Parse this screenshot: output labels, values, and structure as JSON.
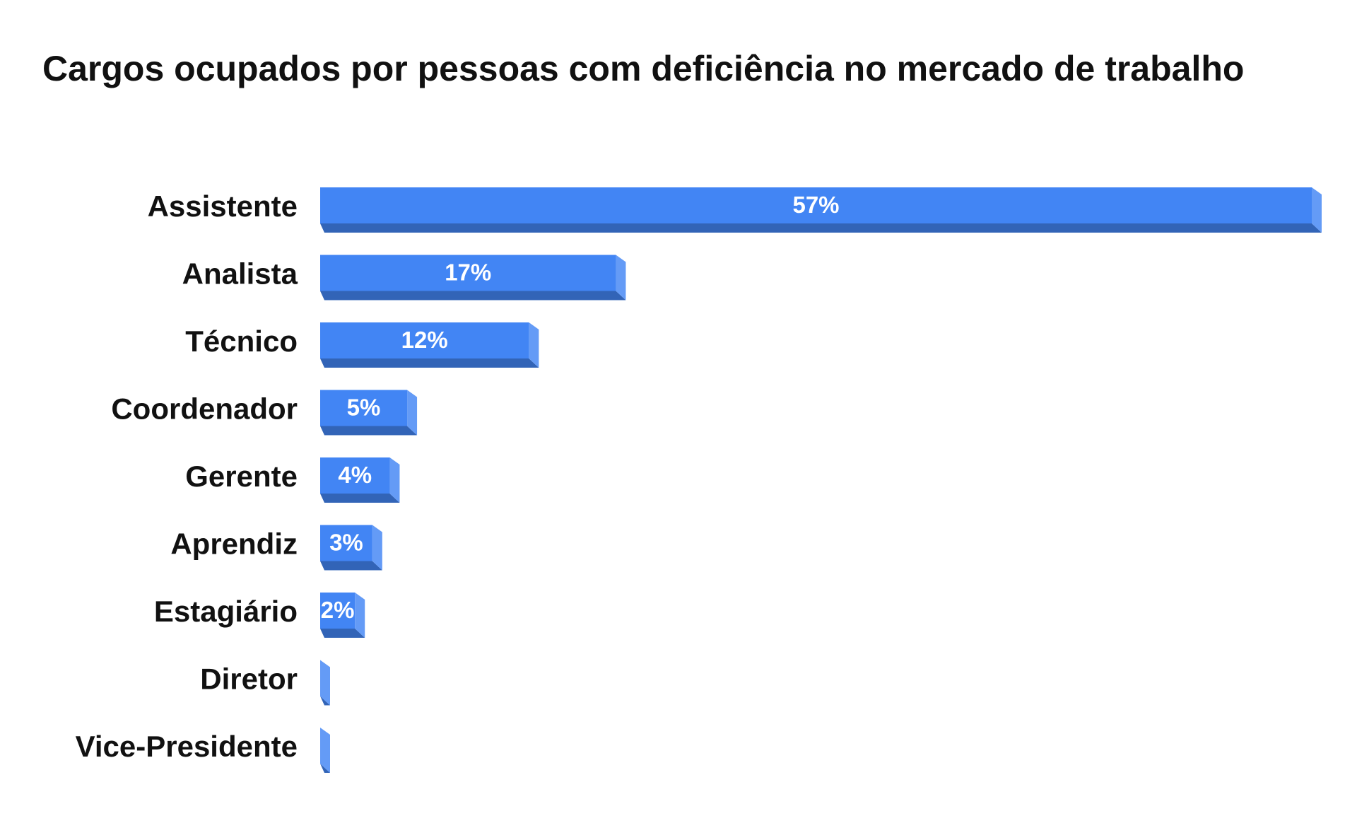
{
  "chart_data": {
    "type": "bar",
    "orientation": "horizontal",
    "title": "Cargos ocupados por pessoas com deficiência no mercado de trabalho",
    "categories": [
      "Assistente",
      "Analista",
      "Técnico",
      "Coordenador",
      "Gerente",
      "Aprendiz",
      "Estagiário",
      "Diretor",
      "Vice-Presidente"
    ],
    "values": [
      57,
      17,
      12,
      5,
      4,
      3,
      2,
      0,
      0
    ],
    "value_labels": [
      "57%",
      "17%",
      "12%",
      "5%",
      "4%",
      "3%",
      "2%",
      null,
      null
    ],
    "color": "#4285f4"
  }
}
